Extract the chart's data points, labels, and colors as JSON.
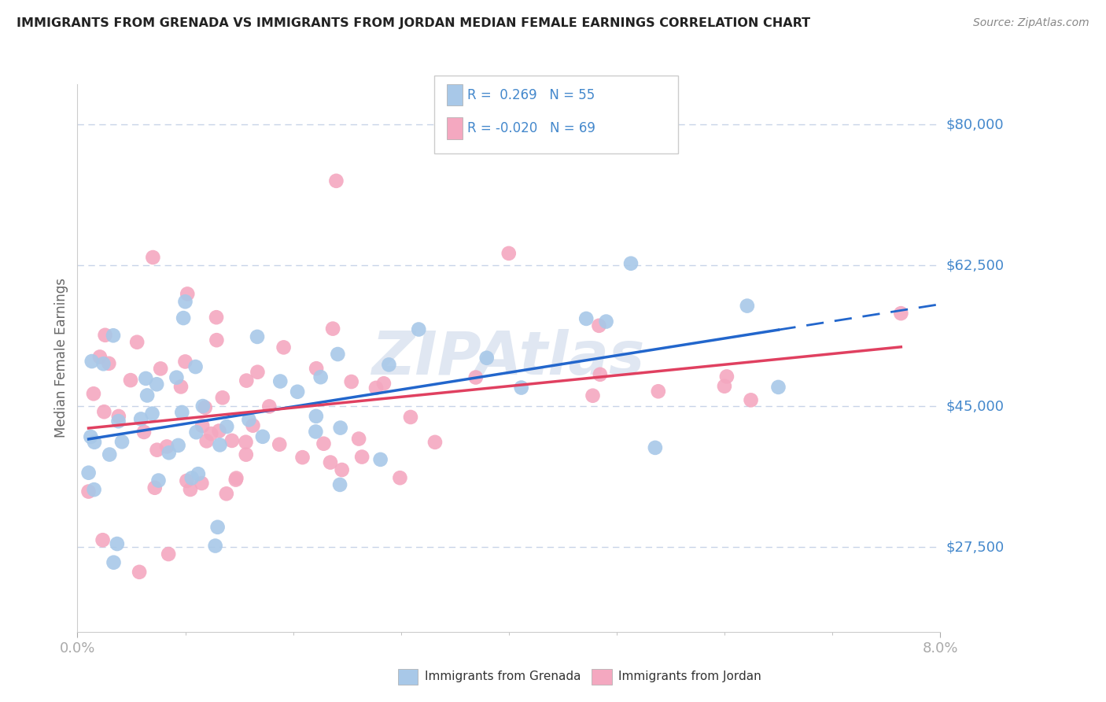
{
  "title": "IMMIGRANTS FROM GRENADA VS IMMIGRANTS FROM JORDAN MEDIAN FEMALE EARNINGS CORRELATION CHART",
  "source": "Source: ZipAtlas.com",
  "ylabel": "Median Female Earnings",
  "ytick_vals": [
    27500,
    45000,
    62500,
    80000
  ],
  "ytick_labels": [
    "$27,500",
    "$45,000",
    "$62,500",
    "$80,000"
  ],
  "xlim": [
    0.0,
    0.08
  ],
  "ylim": [
    17000,
    85000
  ],
  "r_grenada": 0.269,
  "n_grenada": 55,
  "r_jordan": -0.02,
  "n_jordan": 69,
  "watermark": "ZIPAtlas",
  "legend_label_grenada": "Immigrants from Grenada",
  "legend_label_jordan": "Immigrants from Jordan",
  "color_grenada": "#a8c8e8",
  "color_jordan": "#f4a8c0",
  "line_color_grenada": "#2266cc",
  "line_color_jordan": "#e04060",
  "background_color": "#ffffff",
  "grid_color": "#c8d4e8",
  "title_color": "#222222",
  "source_color": "#888888",
  "ylab_color": "#4488cc",
  "axis_label_color": "#888888"
}
